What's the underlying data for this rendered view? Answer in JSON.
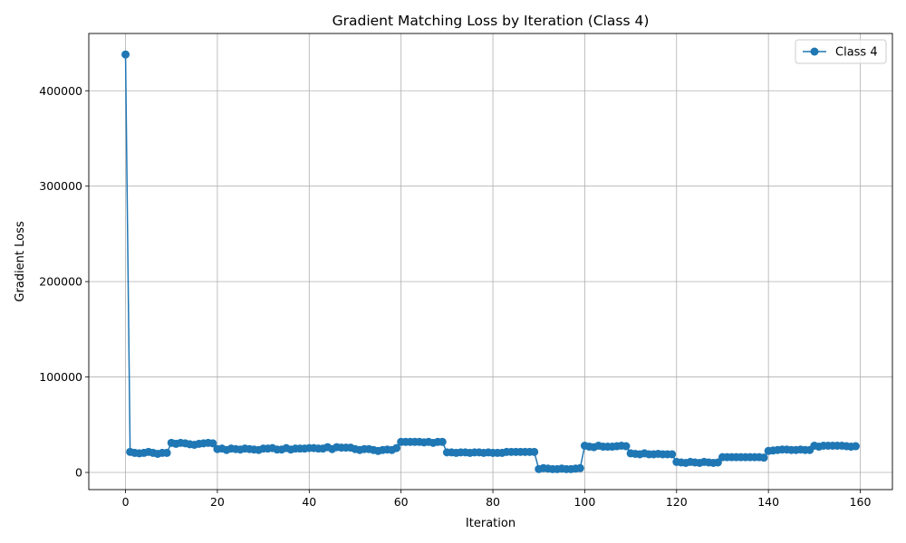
{
  "chart_data": {
    "type": "line",
    "title": "Gradient Matching Loss by Iteration (Class 4)",
    "xlabel": "Iteration",
    "ylabel": "Gradient Loss",
    "xlim": [
      -8,
      167
    ],
    "ylim": [
      -18000,
      460000
    ],
    "xticks": [
      0,
      20,
      40,
      60,
      80,
      100,
      120,
      140,
      160
    ],
    "yticks": [
      0,
      100000,
      200000,
      300000,
      400000
    ],
    "grid": true,
    "legend_position": "top-right",
    "color": "#1f77b4",
    "series": [
      {
        "name": "Class 4",
        "marker": "circle",
        "x": [
          0,
          1,
          2,
          3,
          4,
          5,
          6,
          7,
          8,
          9,
          10,
          11,
          12,
          13,
          14,
          15,
          16,
          17,
          18,
          19,
          20,
          21,
          22,
          23,
          24,
          25,
          26,
          27,
          28,
          29,
          30,
          31,
          32,
          33,
          34,
          35,
          36,
          37,
          38,
          39,
          40,
          41,
          42,
          43,
          44,
          45,
          46,
          47,
          48,
          49,
          50,
          51,
          52,
          53,
          54,
          55,
          56,
          57,
          58,
          59,
          60,
          61,
          62,
          63,
          64,
          65,
          66,
          67,
          68,
          69,
          70,
          71,
          72,
          73,
          74,
          75,
          76,
          77,
          78,
          79,
          80,
          81,
          82,
          83,
          84,
          85,
          86,
          87,
          88,
          89,
          90,
          91,
          92,
          93,
          94,
          95,
          96,
          97,
          98,
          99,
          100,
          101,
          102,
          103,
          104,
          105,
          106,
          107,
          108,
          109,
          110,
          111,
          112,
          113,
          114,
          115,
          116,
          117,
          118,
          119,
          120,
          121,
          122,
          123,
          124,
          125,
          126,
          127,
          128,
          129,
          130,
          131,
          132,
          133,
          134,
          135,
          136,
          137,
          138,
          139,
          140,
          141,
          142,
          143,
          144,
          145,
          146,
          147,
          148,
          149,
          150,
          151,
          152,
          153,
          154,
          155,
          156,
          157,
          158,
          159
        ],
        "y": [
          438000,
          21500,
          20500,
          20000,
          20500,
          21500,
          20500,
          19500,
          20500,
          20500,
          31000,
          30000,
          31000,
          30500,
          29500,
          29000,
          30000,
          30500,
          31000,
          30500,
          24500,
          25000,
          23500,
          25000,
          24500,
          24000,
          25000,
          24500,
          24000,
          23500,
          25000,
          25000,
          25500,
          24000,
          24000,
          25500,
          24000,
          25000,
          25000,
          25000,
          25500,
          25500,
          25000,
          25000,
          26500,
          24500,
          26500,
          26000,
          26000,
          26000,
          24500,
          23500,
          24500,
          24500,
          23500,
          22500,
          23500,
          24000,
          23500,
          25500,
          32000,
          32000,
          32000,
          32000,
          32000,
          31500,
          32000,
          31000,
          32000,
          32000,
          21000,
          21000,
          20500,
          21000,
          21000,
          20500,
          21000,
          21000,
          20500,
          21000,
          20500,
          20500,
          20500,
          21500,
          21500,
          21500,
          21500,
          21500,
          21500,
          21500,
          3500,
          4500,
          4000,
          3500,
          3500,
          4000,
          3500,
          3500,
          4000,
          4500,
          28000,
          27000,
          26500,
          28000,
          27000,
          27000,
          27000,
          27500,
          28000,
          27500,
          20000,
          19500,
          19000,
          20000,
          19000,
          19000,
          19500,
          19000,
          19000,
          19000,
          11000,
          10500,
          10000,
          11000,
          10500,
          10000,
          11000,
          10500,
          10000,
          10500,
          16000,
          16000,
          16000,
          16000,
          16000,
          16000,
          16000,
          16000,
          16000,
          15500,
          22500,
          23000,
          23500,
          24000,
          24000,
          23500,
          23500,
          24000,
          23500,
          23500,
          28000,
          27000,
          28000,
          28000,
          28000,
          28000,
          28000,
          27500,
          27000,
          27500
        ]
      }
    ]
  }
}
